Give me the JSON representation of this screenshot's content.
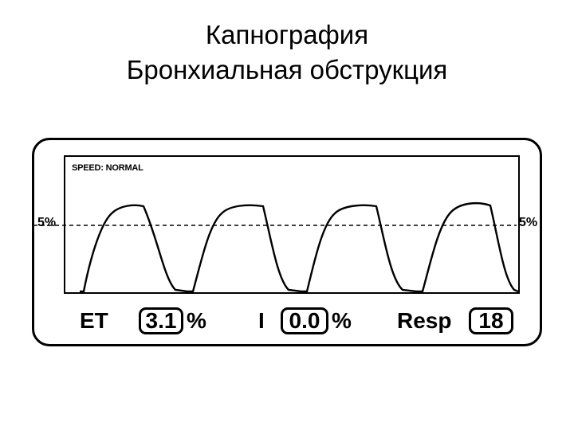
{
  "title": {
    "line1": "Капнография",
    "line2": "Бронхиальная обструкция"
  },
  "monitor": {
    "speed_label": "SPEED: NORMAL",
    "threshold_label": "5%",
    "readouts": {
      "et_label": "ET",
      "et_value": "3.1",
      "et_unit": "%",
      "i_label": "I",
      "i_value": "0.0",
      "i_unit": "%",
      "resp_label": "Resp",
      "resp_value": "18"
    }
  }
}
